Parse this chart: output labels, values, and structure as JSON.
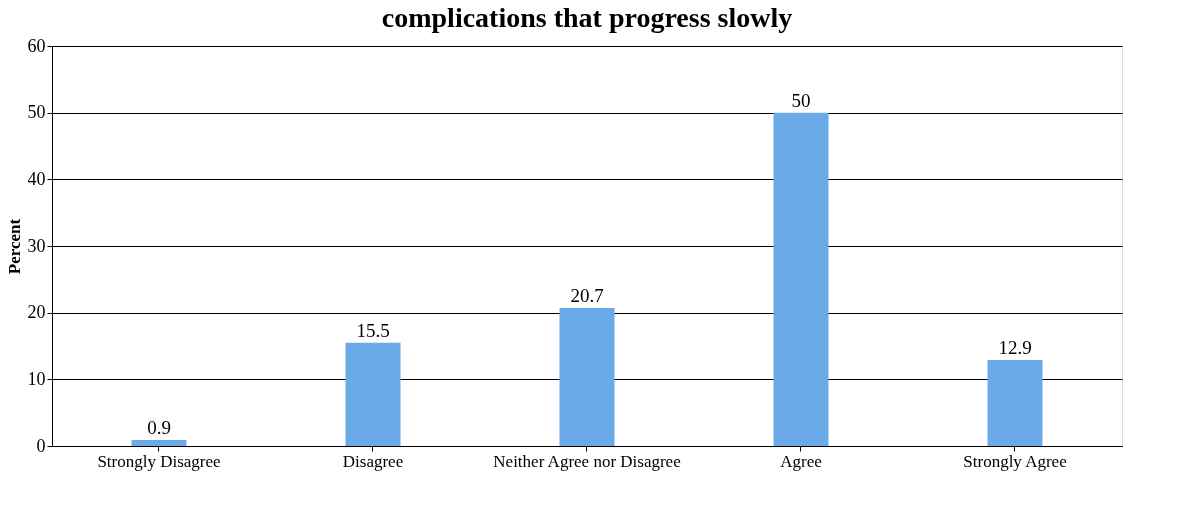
{
  "chart_data": {
    "type": "bar",
    "title": "complications that progress slowly",
    "ylabel": "Percent",
    "categories": [
      "Strongly Disagree",
      "Disagree",
      "Neither Agree nor Disagree",
      "Agree",
      "Strongly Agree"
    ],
    "values": [
      0.9,
      15.5,
      20.7,
      50,
      12.9
    ],
    "color": "#6aaae8",
    "ylim": [
      0,
      60
    ],
    "yticks": [
      0,
      10,
      20,
      30,
      40,
      50,
      60
    ],
    "grid": "y",
    "data_labels": true
  }
}
